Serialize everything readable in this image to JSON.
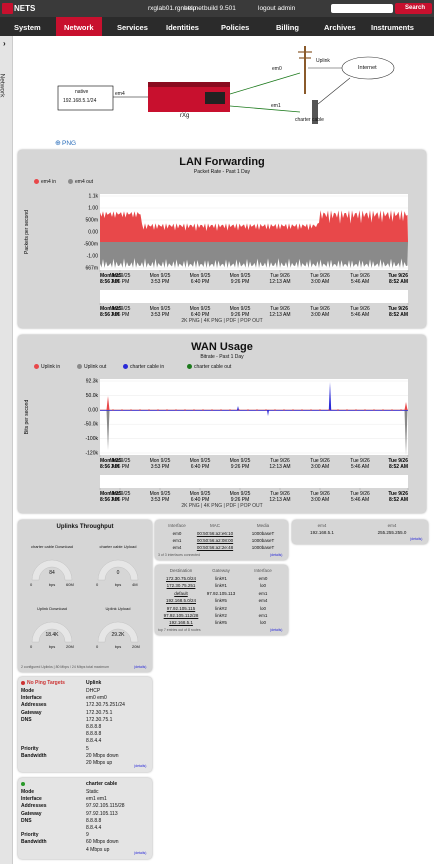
{
  "header": {
    "logo": "NETS",
    "host": "rxglab01.rgnets.net",
    "links": [
      "help",
      "build 9.501",
      "logout admin"
    ],
    "search": "Search"
  },
  "nav": {
    "items": [
      "System",
      "Network",
      "Services",
      "Identities",
      "Policies",
      "Billing",
      "Archives",
      "Instruments"
    ],
    "active": 1
  },
  "sidebar": "Network",
  "diagram": {
    "native": "native",
    "native_ip": "192.168.5.1/24",
    "em4": "em4",
    "router": "rXg",
    "em0": "em0",
    "uplink": "Uplink",
    "internet": "Internet",
    "em1": "em1",
    "charter": "charter cable"
  },
  "png_link": "PNG",
  "lan": {
    "title": "LAN Forwarding",
    "subtitle": "Packet Rate - Past 1 Day",
    "ylabel": "Packets per second",
    "legend": [
      {
        "name": "em4 in",
        "color": "#e8484a"
      },
      {
        "name": "em4 out",
        "color": "#8a8a8a"
      }
    ],
    "yticks": [
      "1.1k",
      "1.00",
      "500m",
      "0.00",
      "-500m",
      "-1.00",
      "667m"
    ],
    "xticks": [
      {
        "day": "Mon 9/25",
        "time": "8:56 AM"
      },
      {
        "day": "Mon 9/25",
        "time": "1:06 PM"
      },
      {
        "day": "Mon 9/25",
        "time": "3:53 PM"
      },
      {
        "day": "Mon 9/25",
        "time": "6:40 PM"
      },
      {
        "day": "Mon 9/25",
        "time": "9:26 PM"
      },
      {
        "day": "Tue 9/26",
        "time": "12:13 AM"
      },
      {
        "day": "Tue 9/26",
        "time": "3:00 AM"
      },
      {
        "day": "Tue 9/26",
        "time": "5:46 AM"
      },
      {
        "day": "Tue 9/26",
        "time": "8:52 AM"
      }
    ],
    "footer": "2K PNG | 4K PNG | PDF | POP OUT"
  },
  "wan": {
    "title": "WAN Usage",
    "subtitle": "Bitrate - Past 1 Day",
    "ylabel": "Bits per second",
    "legend": [
      {
        "name": "Uplink in",
        "color": "#e8484a"
      },
      {
        "name": "Uplink out",
        "color": "#8a8a8a"
      },
      {
        "name": "charter cable in",
        "color": "#2a2ad8"
      },
      {
        "name": "charter cable out",
        "color": "#1d7a1d"
      }
    ],
    "yticks": [
      "92.3k",
      "50.0k",
      "0.00",
      "-50.0k",
      "-100k",
      "-120k"
    ],
    "xticks": [
      {
        "day": "Mon 9/25",
        "time": "8:56 AM"
      },
      {
        "day": "Mon 9/25",
        "time": "1:06 PM"
      },
      {
        "day": "Mon 9/25",
        "time": "3:53 PM"
      },
      {
        "day": "Mon 9/25",
        "time": "6:40 PM"
      },
      {
        "day": "Mon 9/25",
        "time": "9:26 PM"
      },
      {
        "day": "Tue 9/26",
        "time": "12:13 AM"
      },
      {
        "day": "Tue 9/26",
        "time": "3:00 AM"
      },
      {
        "day": "Tue 9/26",
        "time": "5:46 AM"
      },
      {
        "day": "Tue 9/26",
        "time": "8:52 AM"
      }
    ],
    "footer": "2K PNG | 4K PNG | PDF | POP OUT"
  },
  "uplinks": {
    "title": "Uplinks Throughput",
    "gauges": [
      {
        "label": "charter cable Download",
        "value": "84",
        "min": "0",
        "unit": "bps",
        "max": "60M"
      },
      {
        "label": "charter cable Upload",
        "value": "0",
        "min": "0",
        "unit": "bps",
        "max": "4M"
      },
      {
        "label": "Uplink Download",
        "value": "18.4K",
        "min": "0",
        "unit": "bps",
        "max": "20M"
      },
      {
        "label": "Uplink Upload",
        "value": "29.2K",
        "min": "0",
        "unit": "bps",
        "max": "20M"
      }
    ],
    "footer": "2 configured Uplinks | 80 Mbps / 24 Mbps total maximum",
    "details": "(details)"
  },
  "interfaces": {
    "headers": [
      "Interface",
      "MAC",
      "Media"
    ],
    "rows": [
      [
        "em0",
        "00:50:56:a2:e6:10",
        "1000baseT"
      ],
      [
        "em1",
        "00:50:56:a2:08:00",
        "1000baseT"
      ],
      [
        "em4",
        "00:50:56:a2:2e:48",
        "1000baseT"
      ]
    ],
    "footer": "3 of 3 interfaces connected",
    "details": "(details)"
  },
  "routes": {
    "headers": [
      "Destination",
      "Gateway",
      "Interface"
    ],
    "rows": [
      [
        "172.30.75.0/24",
        "link#1",
        "em0"
      ],
      [
        "172.30.75.251",
        "link#1",
        "lo0"
      ],
      [
        "default",
        "97.92.105.113",
        "em1"
      ],
      [
        "192.168.5.0/24",
        "link#5",
        "em4"
      ],
      [
        "97.92.105.115",
        "link#2",
        "lo0"
      ],
      [
        "97.92.105.112/28",
        "link#2",
        "em1"
      ],
      [
        "192.168.5.1",
        "link#5",
        "lo0"
      ]
    ],
    "footer": "top 7 entries out of 8 routes",
    "details": "(details)"
  },
  "em4": {
    "headers": [
      "em4",
      "em4"
    ],
    "row": [
      "192.168.5.1",
      "255.255.255.0"
    ],
    "details": "(details)"
  },
  "uplink_panels": [
    {
      "status": "No Ping Targets",
      "name": "Uplink",
      "rows": [
        {
          "label": "Mode",
          "values": [
            "DHCP"
          ]
        },
        {
          "label": "Interface",
          "values": [
            "em0 em0"
          ]
        },
        {
          "label": "Addresses",
          "values": [
            "172.30.75.251/24"
          ]
        },
        {
          "label": "Gateway",
          "values": [
            "172.30.75.1"
          ]
        },
        {
          "label": "DNS",
          "values": [
            "172.30.75.1",
            "8.8.8.8",
            "8.8.8.8",
            "8.8.4.4"
          ]
        },
        {
          "label": "Priority",
          "values": [
            "5"
          ]
        },
        {
          "label": "Bandwidth",
          "values": [
            "20 Mbps down",
            "20 Mbps up"
          ]
        }
      ],
      "details": "(details)"
    },
    {
      "name": "charter cable",
      "rows": [
        {
          "label": "Mode",
          "values": [
            "Static"
          ]
        },
        {
          "label": "Interface",
          "values": [
            "em1 em1"
          ]
        },
        {
          "label": "Addresses",
          "values": [
            "97.92.105.115/28"
          ]
        },
        {
          "label": "Gateway",
          "values": [
            "97.92.105.113"
          ]
        },
        {
          "label": "DNS",
          "values": [
            "8.8.8.8",
            "8.8.4.4"
          ]
        },
        {
          "label": "Priority",
          "values": [
            "9"
          ]
        },
        {
          "label": "Bandwidth",
          "values": [
            "60 Mbps down",
            "4 Mbps up"
          ]
        }
      ],
      "details": "(details)"
    }
  ]
}
